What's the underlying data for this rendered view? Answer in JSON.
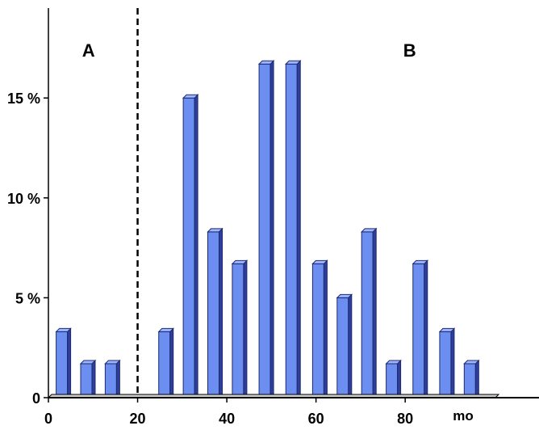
{
  "chart_data": {
    "type": "bar",
    "x": [
      3,
      8.5,
      14,
      26,
      31.5,
      37,
      42.5,
      48.5,
      54.5,
      60.5,
      66,
      71.5,
      77,
      83,
      89,
      94.5
    ],
    "values": [
      3.3,
      1.7,
      1.7,
      3.3,
      15,
      8.3,
      6.7,
      16.7,
      16.7,
      6.7,
      5,
      8.3,
      1.7,
      6.7,
      3.3,
      1.7
    ],
    "xlim": [
      0,
      110
    ],
    "ylim": [
      0,
      19.5
    ],
    "x_ticks": [
      "0",
      "20",
      "40",
      "60",
      "80"
    ],
    "x_tick_values": [
      0,
      20,
      40,
      60,
      80
    ],
    "y_ticks": [
      "0",
      "5 %",
      "10 %",
      "15 %"
    ],
    "y_tick_values": [
      0,
      5,
      10,
      15
    ],
    "x_unit_label": "mo",
    "divider_x": 20,
    "section_labels": [
      {
        "text": "A",
        "x": 9
      },
      {
        "text": "B",
        "x": 81
      }
    ],
    "bar_color": "#6b8ef0",
    "bar_side_color": "#2f3f99",
    "bar_top_color": "#9db6ff",
    "axis_color": "#000000",
    "grid": false,
    "legend": "none"
  }
}
